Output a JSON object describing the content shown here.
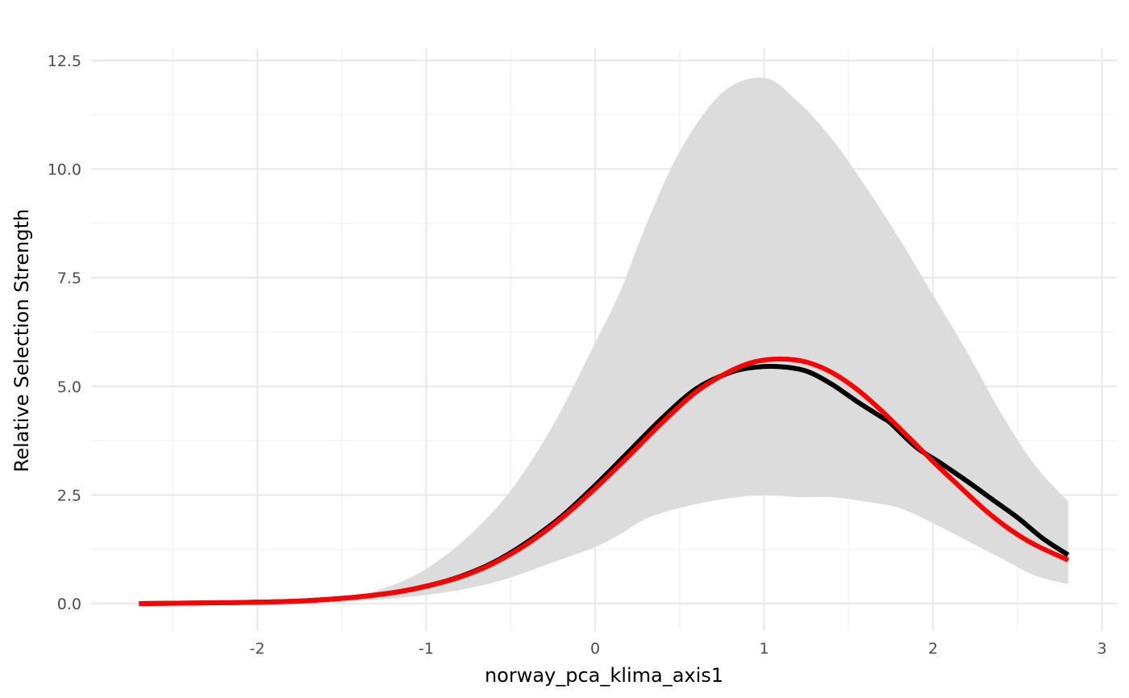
{
  "chart_data": {
    "type": "line",
    "title": "",
    "xlabel": "norway_pca_klima_axis1",
    "ylabel": "Relative Selection Strength",
    "xlim": [
      -2.7,
      3.0
    ],
    "ylim": [
      -0.6,
      12.7
    ],
    "x_ticks": [
      -2,
      -1,
      0,
      1,
      2,
      3
    ],
    "x_tick_labels": [
      "-2",
      "-1",
      "0",
      "1",
      "2",
      "3"
    ],
    "y_ticks": [
      0,
      2.5,
      5,
      7.5,
      10,
      12.5
    ],
    "y_tick_labels": [
      "0.0",
      "2.5",
      "5.0",
      "7.5",
      "10.0",
      "12.5"
    ],
    "grid": true,
    "legend": "none",
    "colors": {
      "ribbon": "#dcdcdc",
      "mean_line": "#000000",
      "fit_line": "#ff0000",
      "grid_major": "#ebebeb",
      "grid_minor": "#f2f2f2",
      "tick_text": "#4d4d4d"
    },
    "ribbon": {
      "x": [
        -2.7,
        -2.0,
        -1.5,
        -1.25,
        -1.0,
        -0.75,
        -0.5,
        -0.25,
        0.0,
        0.15,
        0.3,
        0.5,
        0.75,
        1.0,
        1.2,
        1.4,
        1.6,
        1.8,
        2.0,
        2.2,
        2.4,
        2.6,
        2.8
      ],
      "lower": [
        0.0,
        0.0,
        0.05,
        0.1,
        0.2,
        0.35,
        0.6,
        0.95,
        1.3,
        1.6,
        1.95,
        2.2,
        2.4,
        2.5,
        2.45,
        2.45,
        2.35,
        2.2,
        1.85,
        1.45,
        1.05,
        0.65,
        0.45
      ],
      "upper": [
        0.0,
        0.0,
        0.15,
        0.35,
        0.8,
        1.55,
        2.6,
        4.1,
        6.0,
        7.2,
        8.7,
        10.4,
        11.75,
        12.1,
        11.55,
        10.7,
        9.6,
        8.4,
        7.1,
        5.8,
        4.4,
        3.2,
        2.35
      ]
    },
    "series": [
      {
        "x": [
          -2.7,
          -2.2,
          -1.8,
          -1.5,
          -1.2,
          -1.0,
          -0.8,
          -0.6,
          -0.4,
          -0.2,
          0.0,
          0.2,
          0.4,
          0.6,
          0.8,
          0.95,
          1.1,
          1.25,
          1.4,
          1.55,
          1.7,
          1.75,
          1.9,
          2.05,
          2.2,
          2.35,
          2.5,
          2.65,
          2.8
        ],
        "values": [
          0.0,
          0.02,
          0.05,
          0.12,
          0.25,
          0.4,
          0.62,
          0.95,
          1.42,
          2.0,
          2.72,
          3.5,
          4.28,
          4.95,
          5.32,
          5.44,
          5.45,
          5.35,
          5.05,
          4.65,
          4.28,
          4.15,
          3.6,
          3.22,
          2.82,
          2.4,
          1.98,
          1.5,
          1.12
        ]
      },
      {
        "x": [
          -2.7,
          -2.2,
          -1.8,
          -1.5,
          -1.2,
          -1.0,
          -0.8,
          -0.6,
          -0.4,
          -0.2,
          0.0,
          0.2,
          0.4,
          0.6,
          0.8,
          0.95,
          1.1,
          1.25,
          1.4,
          1.55,
          1.7,
          1.85,
          2.0,
          2.15,
          2.3,
          2.45,
          2.6,
          2.8
        ],
        "values": [
          0.0,
          0.02,
          0.05,
          0.12,
          0.25,
          0.4,
          0.61,
          0.93,
          1.38,
          1.96,
          2.65,
          3.4,
          4.18,
          4.88,
          5.35,
          5.57,
          5.63,
          5.56,
          5.32,
          4.93,
          4.42,
          3.85,
          3.27,
          2.72,
          2.18,
          1.72,
          1.36,
          1.0
        ]
      }
    ]
  }
}
